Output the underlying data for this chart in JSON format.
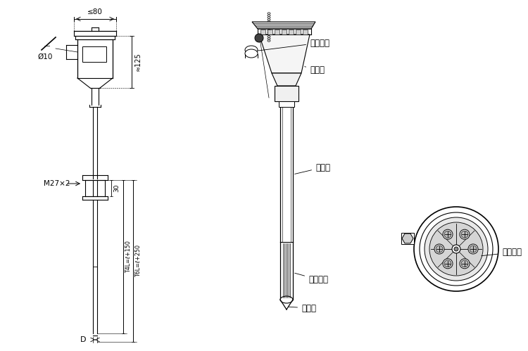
{
  "bg_color": "#ffffff",
  "line_color": "#000000",
  "labels": {
    "dim_80": "≤80",
    "dim_125": "≈125",
    "dim_phi10": "Ø10",
    "dim_30": "30",
    "dim_M27": "M27×2",
    "dim_D": "D",
    "dim_T4L": "T4L=ℓ+150",
    "dim_T6L": "T6L=ℓ+250",
    "label_elec": "电气出口",
    "label_box": "接线盒",
    "label_tube": "保护管",
    "label_insul": "绶缘套管",
    "label_meas": "测量端",
    "label_term": "接线端子"
  }
}
